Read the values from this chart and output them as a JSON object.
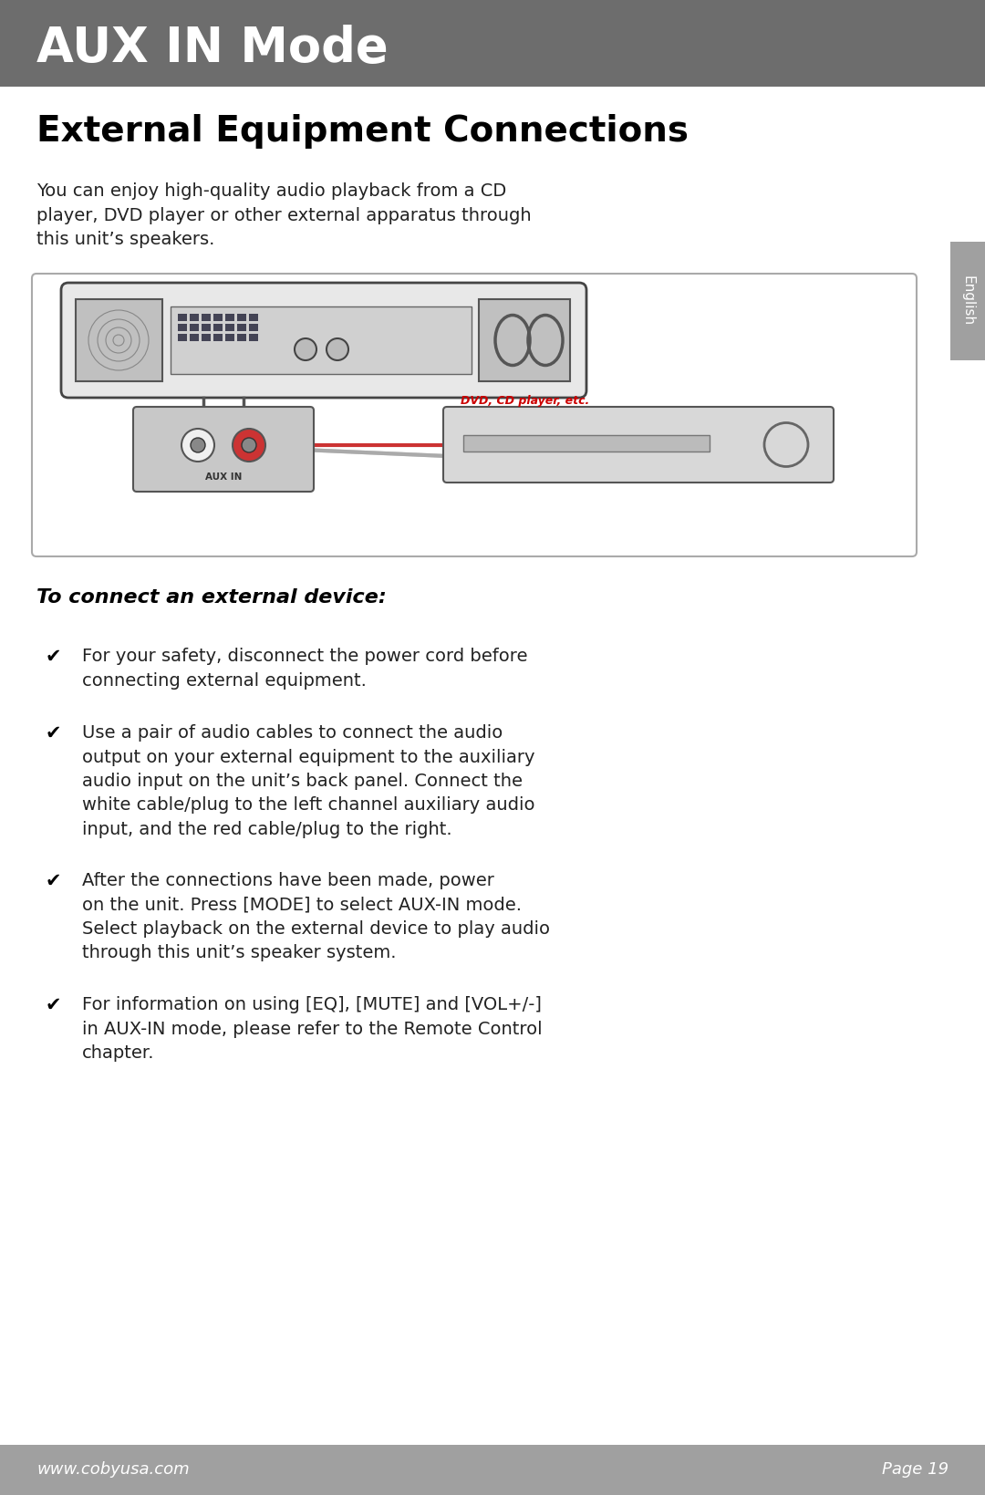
{
  "title": "AUX IN Mode",
  "title_bg": "#6d6d6d",
  "title_color": "#ffffff",
  "page_bg": "#ffffff",
  "footer_bg": "#a0a0a0",
  "footer_text_left": "www.cobyusa.com",
  "footer_text_right": "Page 19",
  "footer_color": "#ffffff",
  "section_title": "External Equipment Connections",
  "section_title_color": "#000000",
  "body_text": "You can enjoy high-quality audio playback from a CD\nplayer, DVD player or other external apparatus through\nthis unit’s speakers.",
  "instruction_header": "To connect an external device:",
  "bullets": [
    "For your safety, disconnect the power cord before\nconnecting external equipment.",
    "Use a pair of audio cables to connect the audio\noutput on your external equipment to the auxiliary\naudio input on the unit’s back panel. Connect the\nwhite cable/plug to the left channel auxiliary audio\ninput, and the red cable/plug to the right.",
    "After the connections have been made, power\non the unit. Press [MODE] to select AUX-IN mode.\nSelect playback on the external device to play audio\nthrough this unit’s speaker system.",
    "For information on using [EQ], [MUTE] and [VOL+/-]\nin AUX-IN mode, please refer to the Remote Control\nchapter."
  ],
  "bullet_symbol": "✔",
  "side_tab_color": "#a0a0a0",
  "side_tab_text": "English",
  "side_tab_text_color": "#ffffff",
  "diagram_border_color": "#cccccc",
  "diagram_bg": "#ffffff"
}
